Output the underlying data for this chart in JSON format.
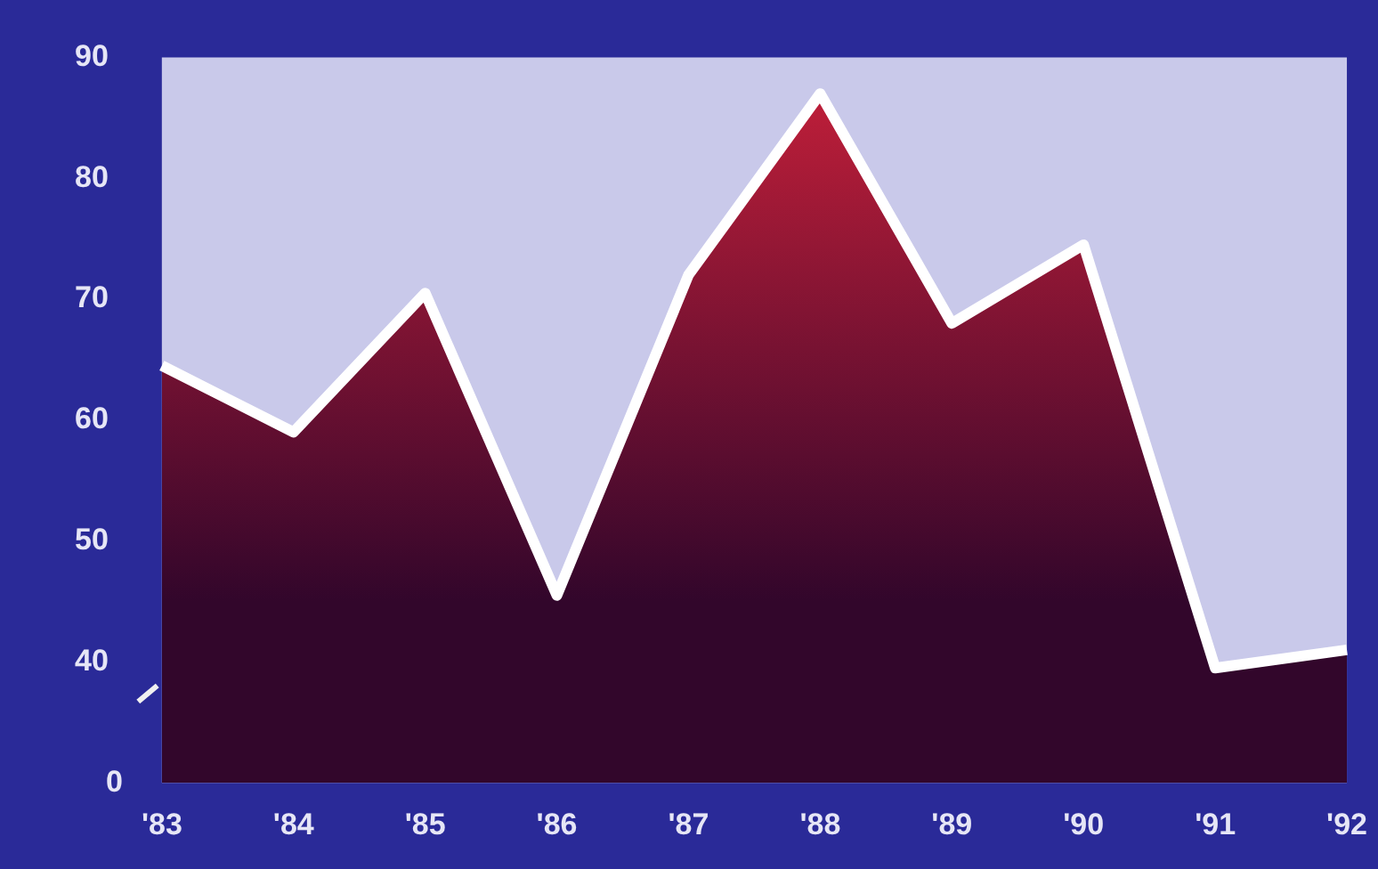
{
  "chart_data": {
    "type": "area",
    "categories": [
      "'83",
      "'84",
      "'85",
      "'86",
      "'87",
      "'88",
      "'89",
      "'90",
      "'91",
      "'92"
    ],
    "series": [
      {
        "color": "#c8203a",
        "values": [
          64.5,
          59,
          70.5,
          45.5,
          72,
          87,
          68,
          74.5,
          39.5,
          41
        ]
      }
    ],
    "ylim": [
      30,
      90
    ],
    "yticks": [
      40,
      50,
      60,
      70,
      80,
      90
    ],
    "annotations": [
      "0"
    ],
    "grid": false,
    "legend": false
  }
}
